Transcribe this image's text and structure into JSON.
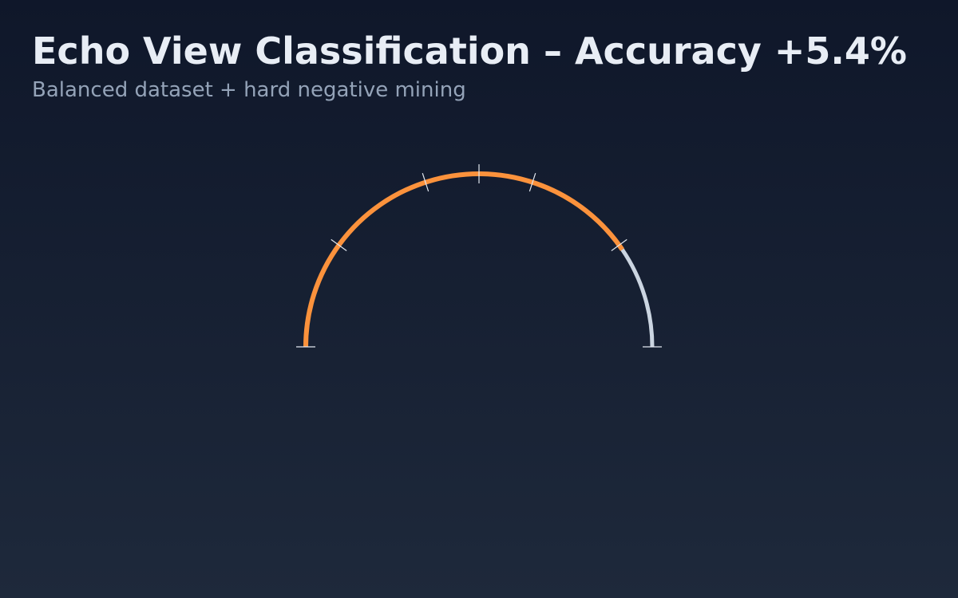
{
  "chart_data": {
    "type": "gauge",
    "title": "Echo View Classification – Accuracy +5.4%",
    "subtitle": "Balanced dataset + hard negative mining",
    "value": 0.81,
    "range": [
      0,
      1
    ],
    "ticks": [
      0,
      0.2,
      0.4,
      0.5,
      0.6,
      0.8,
      1.0
    ],
    "colors": {
      "value_arc": "#fb923c",
      "track_arc": "#cbd5e1",
      "ticks": "#e2e8f0"
    }
  }
}
